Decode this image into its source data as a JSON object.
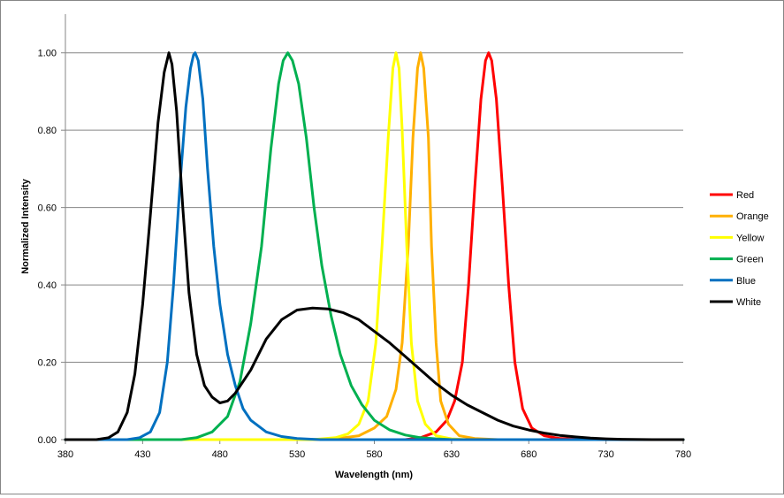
{
  "chart_data": {
    "type": "line",
    "title": "",
    "xlabel": "Wavelength (nm)",
    "ylabel": "Normalized Intensity",
    "xlim": [
      380,
      780
    ],
    "ylim": [
      0,
      1.1
    ],
    "x_ticks": [
      380,
      430,
      480,
      530,
      580,
      630,
      680,
      730,
      780
    ],
    "x_tick_labels": [
      "380",
      "430",
      "480",
      "530",
      "580",
      "630",
      "680",
      "730",
      "780"
    ],
    "y_ticks": [
      0,
      0.2,
      0.4,
      0.6,
      0.8,
      1.0
    ],
    "y_tick_labels": [
      "0.00",
      "0.20",
      "0.40",
      "0.60",
      "0.80",
      "1.00"
    ],
    "grid": "horizontal major gridlines",
    "legend_position": "right",
    "series": [
      {
        "name": "Red",
        "color": "#ff0000",
        "points": [
          [
            600,
            0
          ],
          [
            610,
            0.005
          ],
          [
            620,
            0.02
          ],
          [
            627,
            0.05
          ],
          [
            632,
            0.1
          ],
          [
            637,
            0.2
          ],
          [
            641,
            0.4
          ],
          [
            645,
            0.65
          ],
          [
            649,
            0.88
          ],
          [
            652,
            0.98
          ],
          [
            654,
            1.0
          ],
          [
            656,
            0.98
          ],
          [
            659,
            0.88
          ],
          [
            663,
            0.65
          ],
          [
            667,
            0.4
          ],
          [
            671,
            0.2
          ],
          [
            676,
            0.08
          ],
          [
            682,
            0.03
          ],
          [
            690,
            0.01
          ],
          [
            700,
            0.003
          ],
          [
            720,
            0
          ],
          [
            780,
            0
          ]
        ]
      },
      {
        "name": "Orange",
        "color": "#ffb000",
        "points": [
          [
            380,
            0
          ],
          [
            540,
            0
          ],
          [
            555,
            0.002
          ],
          [
            570,
            0.01
          ],
          [
            580,
            0.03
          ],
          [
            588,
            0.06
          ],
          [
            594,
            0.13
          ],
          [
            598,
            0.25
          ],
          [
            602,
            0.5
          ],
          [
            605,
            0.78
          ],
          [
            608,
            0.96
          ],
          [
            610,
            1.0
          ],
          [
            612,
            0.96
          ],
          [
            615,
            0.78
          ],
          [
            617,
            0.5
          ],
          [
            620,
            0.25
          ],
          [
            623,
            0.1
          ],
          [
            628,
            0.04
          ],
          [
            635,
            0.01
          ],
          [
            645,
            0.003
          ],
          [
            660,
            0
          ],
          [
            780,
            0
          ]
        ]
      },
      {
        "name": "Yellow",
        "color": "#ffff00",
        "points": [
          [
            380,
            0
          ],
          [
            540,
            0
          ],
          [
            555,
            0.005
          ],
          [
            563,
            0.015
          ],
          [
            570,
            0.04
          ],
          [
            576,
            0.1
          ],
          [
            581,
            0.25
          ],
          [
            585,
            0.5
          ],
          [
            589,
            0.78
          ],
          [
            592,
            0.96
          ],
          [
            594,
            1.0
          ],
          [
            596,
            0.96
          ],
          [
            598,
            0.8
          ],
          [
            601,
            0.5
          ],
          [
            604,
            0.25
          ],
          [
            608,
            0.1
          ],
          [
            613,
            0.04
          ],
          [
            620,
            0.01
          ],
          [
            630,
            0.002
          ],
          [
            640,
            0
          ],
          [
            780,
            0
          ]
        ]
      },
      {
        "name": "Green",
        "color": "#00b050",
        "points": [
          [
            380,
            0
          ],
          [
            455,
            0
          ],
          [
            465,
            0.005
          ],
          [
            475,
            0.02
          ],
          [
            485,
            0.06
          ],
          [
            493,
            0.15
          ],
          [
            500,
            0.3
          ],
          [
            507,
            0.5
          ],
          [
            513,
            0.75
          ],
          [
            518,
            0.92
          ],
          [
            521,
            0.98
          ],
          [
            524,
            1.0
          ],
          [
            527,
            0.98
          ],
          [
            531,
            0.92
          ],
          [
            536,
            0.78
          ],
          [
            541,
            0.6
          ],
          [
            546,
            0.45
          ],
          [
            552,
            0.32
          ],
          [
            558,
            0.22
          ],
          [
            565,
            0.14
          ],
          [
            572,
            0.09
          ],
          [
            580,
            0.05
          ],
          [
            590,
            0.025
          ],
          [
            600,
            0.012
          ],
          [
            610,
            0.005
          ],
          [
            620,
            0.002
          ],
          [
            630,
            0
          ],
          [
            780,
            0
          ]
        ]
      },
      {
        "name": "Blue",
        "color": "#0070c0",
        "points": [
          [
            380,
            0
          ],
          [
            420,
            0
          ],
          [
            428,
            0.005
          ],
          [
            435,
            0.02
          ],
          [
            441,
            0.07
          ],
          [
            446,
            0.2
          ],
          [
            450,
            0.4
          ],
          [
            454,
            0.65
          ],
          [
            458,
            0.86
          ],
          [
            461,
            0.96
          ],
          [
            463,
            0.995
          ],
          [
            464,
            1.0
          ],
          [
            466,
            0.98
          ],
          [
            469,
            0.88
          ],
          [
            472,
            0.7
          ],
          [
            476,
            0.5
          ],
          [
            480,
            0.35
          ],
          [
            485,
            0.22
          ],
          [
            490,
            0.14
          ],
          [
            495,
            0.08
          ],
          [
            500,
            0.05
          ],
          [
            510,
            0.02
          ],
          [
            520,
            0.008
          ],
          [
            530,
            0.003
          ],
          [
            545,
            0
          ],
          [
            780,
            0
          ]
        ]
      },
      {
        "name": "White",
        "color": "#000000",
        "points": [
          [
            380,
            0
          ],
          [
            400,
            0
          ],
          [
            408,
            0.005
          ],
          [
            414,
            0.02
          ],
          [
            420,
            0.07
          ],
          [
            425,
            0.17
          ],
          [
            430,
            0.35
          ],
          [
            435,
            0.58
          ],
          [
            440,
            0.82
          ],
          [
            444,
            0.95
          ],
          [
            447,
            1.0
          ],
          [
            449,
            0.97
          ],
          [
            452,
            0.85
          ],
          [
            456,
            0.6
          ],
          [
            460,
            0.38
          ],
          [
            465,
            0.22
          ],
          [
            470,
            0.14
          ],
          [
            475,
            0.11
          ],
          [
            480,
            0.095
          ],
          [
            485,
            0.1
          ],
          [
            490,
            0.12
          ],
          [
            500,
            0.18
          ],
          [
            510,
            0.26
          ],
          [
            520,
            0.31
          ],
          [
            530,
            0.335
          ],
          [
            540,
            0.34
          ],
          [
            550,
            0.338
          ],
          [
            560,
            0.328
          ],
          [
            570,
            0.31
          ],
          [
            580,
            0.28
          ],
          [
            590,
            0.25
          ],
          [
            600,
            0.215
          ],
          [
            610,
            0.18
          ],
          [
            620,
            0.145
          ],
          [
            630,
            0.115
          ],
          [
            640,
            0.09
          ],
          [
            650,
            0.07
          ],
          [
            660,
            0.05
          ],
          [
            670,
            0.035
          ],
          [
            680,
            0.025
          ],
          [
            690,
            0.017
          ],
          [
            700,
            0.011
          ],
          [
            710,
            0.007
          ],
          [
            720,
            0.004
          ],
          [
            730,
            0.002
          ],
          [
            740,
            0.001
          ],
          [
            760,
            0
          ],
          [
            780,
            0
          ]
        ]
      }
    ]
  }
}
